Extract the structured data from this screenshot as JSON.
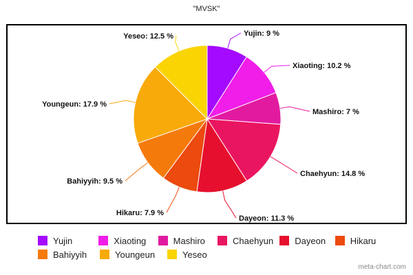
{
  "chart_data": {
    "type": "pie",
    "title": "\"MVSK\"",
    "slices": [
      {
        "name": "Yujin",
        "value": 9,
        "label": "Yujin: 9 %",
        "color": "#a40aff"
      },
      {
        "name": "Xiaoting",
        "value": 10.2,
        "label": "Xiaoting: 10.2 %",
        "color": "#f01ee8"
      },
      {
        "name": "Mashiro",
        "value": 7,
        "label": "Mashiro: 7 %",
        "color": "#e21aa0"
      },
      {
        "name": "Chaehyun",
        "value": 14.8,
        "label": "Chaehyun: 14.8 %",
        "color": "#ea1560"
      },
      {
        "name": "Dayeon",
        "value": 11.3,
        "label": "Dayeon: 11.3 %",
        "color": "#e6102e"
      },
      {
        "name": "Hikaru",
        "value": 7.9,
        "label": "Hikaru: 7.9 %",
        "color": "#ec4a0e"
      },
      {
        "name": "Bahiyyih",
        "value": 9.5,
        "label": "Bahiyyih: 9.5 %",
        "color": "#f57a0c"
      },
      {
        "name": "Youngeun",
        "value": 17.9,
        "label": "Youngeun: 17.9 %",
        "color": "#f9aa0b"
      },
      {
        "name": "Yeseo",
        "value": 12.5,
        "label": "Yeseo: 12.5 %",
        "color": "#fbd404"
      }
    ],
    "legend": {
      "placement": "bottom",
      "rows": [
        [
          "Yujin",
          "Xiaoting",
          "Mashiro",
          "Chaehyun",
          "Dayeon",
          "Hikaru"
        ],
        [
          "Bahiyyih",
          "Youngeun",
          "Yeseo"
        ]
      ]
    }
  },
  "watermark": "meta-chart.com"
}
